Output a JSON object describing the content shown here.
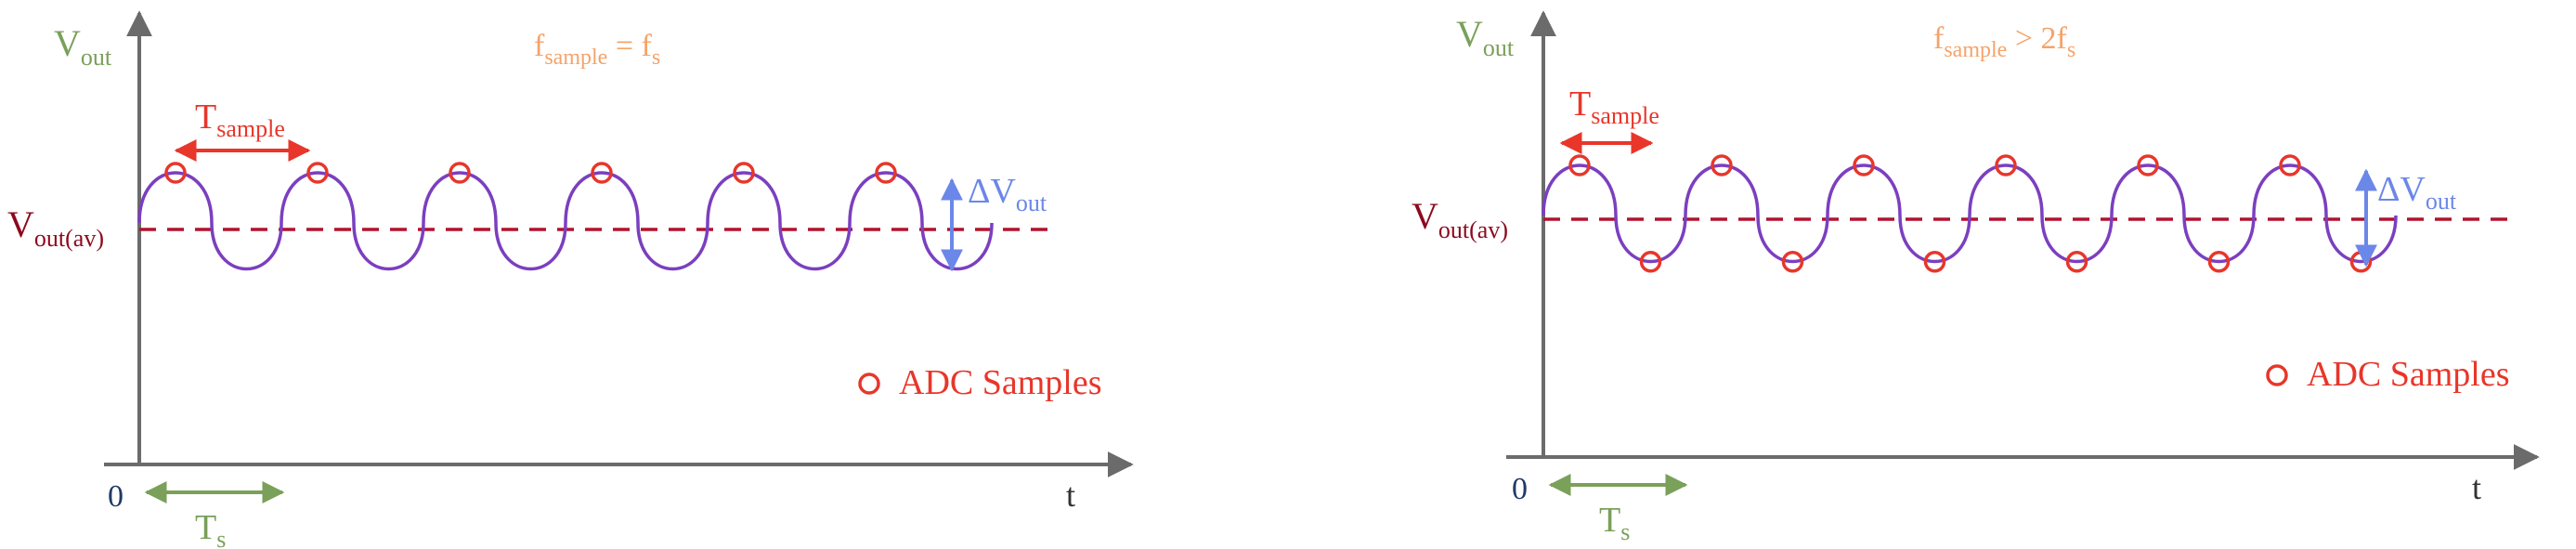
{
  "colors": {
    "axis": "#6b6b6b",
    "vout_label": "#7aa05a",
    "avg_line": "#b3122e",
    "avg_label": "#8b0a1e",
    "signal": "#7b3fbf",
    "samples": "#e8362a",
    "period": "#e8362a",
    "ts": "#7aa05a",
    "delta": "#6b87e8",
    "condition": "#f5a36a",
    "origin": "#1f3a66",
    "t_label": "#333333"
  },
  "panels": [
    {
      "id": "left",
      "y_label": {
        "main": "V",
        "sub": "out"
      },
      "condition": {
        "f": "f",
        "sub": "sample",
        "op": " = f",
        "tail_sub": "s",
        "tail": ""
      },
      "tsample": {
        "main": "T",
        "sub": "sample"
      },
      "avg_label": {
        "main": "V",
        "sub": "out(av)"
      },
      "delta": {
        "main": "ΔV",
        "sub": "out"
      },
      "legend": "ADC Samples",
      "origin": "0",
      "x_label": "t",
      "ts": {
        "main": "T",
        "sub": "s"
      },
      "periods": 6,
      "sample_mode": "peaks"
    },
    {
      "id": "right",
      "y_label": {
        "main": "V",
        "sub": "out"
      },
      "condition": {
        "f": "f",
        "sub": "sample",
        "op": " > 2f",
        "tail_sub": "s",
        "tail": ""
      },
      "tsample": {
        "main": "T",
        "sub": "sample"
      },
      "avg_label": {
        "main": "V",
        "sub": "out(av)"
      },
      "delta": {
        "main": "ΔV",
        "sub": "out"
      },
      "legend": "ADC Samples",
      "origin": "0",
      "x_label": "t",
      "ts": {
        "main": "T",
        "sub": "s"
      },
      "periods": 6,
      "sample_mode": "peaks_and_troughs"
    }
  ]
}
